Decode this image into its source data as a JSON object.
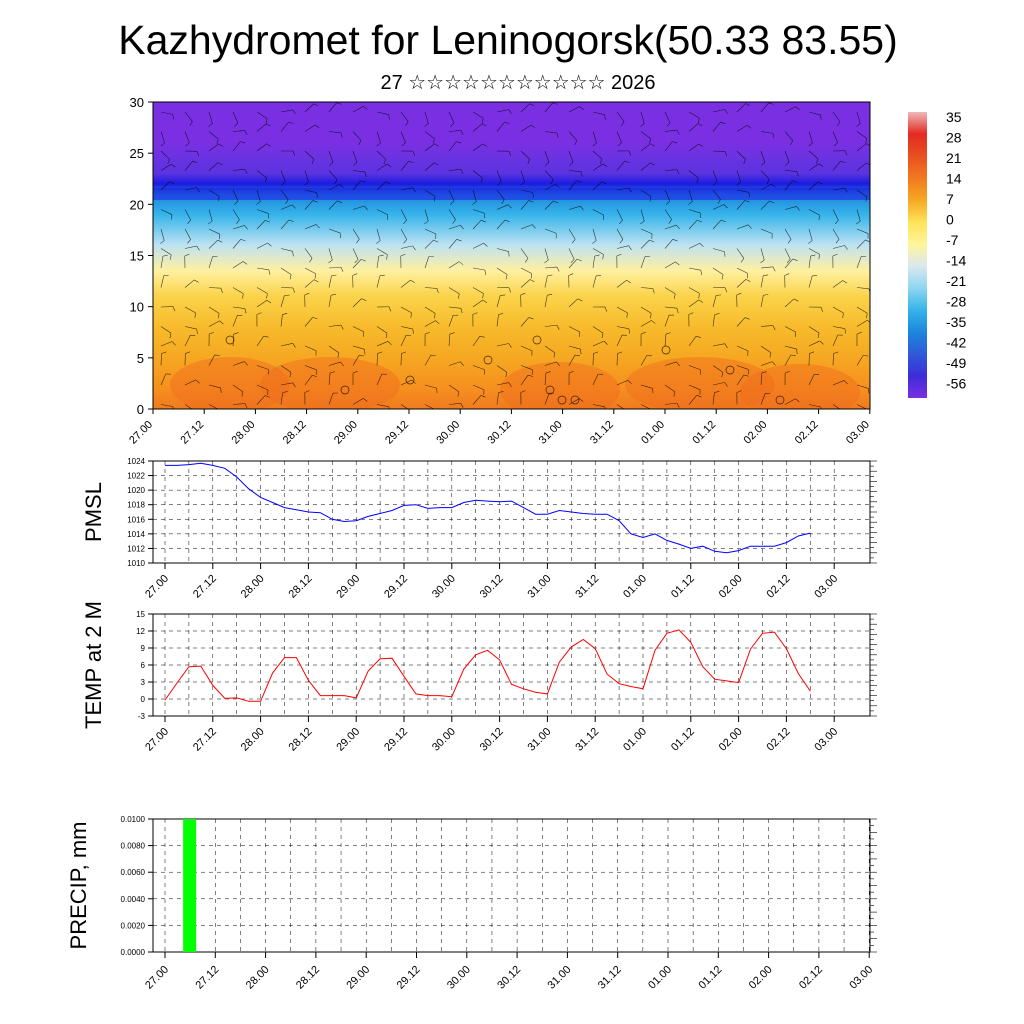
{
  "title": "Kazhydromet for Leninogorsk(50.33 83.55)",
  "subtitle": "27 ☆☆☆☆☆☆☆☆☆☆☆ 2026",
  "colors": {
    "pmsl_line": "#0000ff",
    "temp_line": "#ff0000",
    "precip_bar": "#00ff00",
    "frame": "#000000",
    "grid": "#000000"
  },
  "chart_data": [
    {
      "type": "heatmap",
      "title": "",
      "xlabel": "",
      "ylabel": "",
      "x_ticks": [
        "27.00",
        "27.12",
        "28.00",
        "28.12",
        "29.00",
        "29.12",
        "30.00",
        "30.12",
        "31.00",
        "31.12",
        "01.00",
        "01.12",
        "02.00",
        "02.12",
        "03.00"
      ],
      "xlim": [
        0,
        14
      ],
      "ylim": [
        0,
        30
      ],
      "y_ticks": [
        0,
        5,
        10,
        15,
        20,
        25,
        30
      ],
      "overlay": "wind barbs",
      "colorbar_labels": [
        "35",
        "28",
        "21",
        "14",
        "7",
        "0",
        "-7",
        "-14",
        "-21",
        "-28",
        "-35",
        "-42",
        "-49",
        "-56"
      ],
      "colorbar_colors": [
        "#f0b8b8",
        "#e32a22",
        "#e85020",
        "#f07a1f",
        "#f6a822",
        "#fde35a",
        "#fff59a",
        "#dbe8f0",
        "#8fd6f0",
        "#36b4ea",
        "#1d86dc",
        "#2f5ad8",
        "#3d2cd8",
        "#7a30e2"
      ],
      "profile_levels": [
        0,
        2,
        5,
        8,
        11,
        13.5,
        16,
        19,
        21,
        22,
        23,
        26,
        30
      ],
      "profile_colors": [
        "#f07a1f",
        "#f6901f",
        "#f6a822",
        "#f7bb2c",
        "#fbd34a",
        "#fff0a0",
        "#bfe2f2",
        "#36b4ea",
        "#1d86dc",
        "#1c1ae0",
        "#5a34e0",
        "#7a30e2",
        "#7a30e2"
      ]
    },
    {
      "type": "line",
      "ylabel": "PMSL",
      "x_ticks": [
        "27.00",
        "27.12",
        "28.00",
        "28.12",
        "29.00",
        "29.12",
        "30.00",
        "30.12",
        "31.00",
        "31.12",
        "01.00",
        "01.12",
        "02.00",
        "02.12",
        "03.00"
      ],
      "xlim": [
        0,
        14
      ],
      "ylim": [
        1010,
        1024
      ],
      "y_ticks": [
        1010,
        1012,
        1014,
        1016,
        1018,
        1020,
        1022,
        1024
      ],
      "grid": true,
      "series": [
        {
          "x": [
            0,
            0.25,
            0.5,
            0.75,
            1,
            1.25,
            1.5,
            1.75,
            2,
            2.25,
            2.5,
            2.75,
            3,
            3.25,
            3.5,
            3.75,
            4,
            4.25,
            4.5,
            4.75,
            5,
            5.25,
            5.5,
            5.75,
            6,
            6.25,
            6.5,
            6.75,
            7,
            7.25,
            7.5,
            7.75,
            8,
            8.25,
            8.5,
            8.75,
            9,
            9.25,
            9.5,
            9.75,
            10,
            10.25,
            10.5,
            10.75,
            11,
            11.25,
            11.5,
            11.75,
            12,
            12.25,
            12.5,
            12.75,
            13,
            13.25,
            13.5
          ],
          "values": [
            1023.4,
            1023.4,
            1023.5,
            1023.7,
            1023.4,
            1023.0,
            1021.8,
            1020.2,
            1019.0,
            1018.3,
            1017.6,
            1017.3,
            1017.0,
            1016.9,
            1016.0,
            1015.7,
            1015.8,
            1016.4,
            1016.8,
            1017.2,
            1017.9,
            1018.0,
            1017.5,
            1017.6,
            1017.6,
            1018.3,
            1018.6,
            1018.5,
            1018.4,
            1018.5,
            1017.6,
            1016.7,
            1016.7,
            1017.2,
            1017.0,
            1016.8,
            1016.7,
            1016.7,
            1015.8,
            1014.0,
            1013.5,
            1014.0,
            1013.1,
            1012.6,
            1012.0,
            1012.3,
            1011.6,
            1011.4,
            1011.7,
            1012.3,
            1012.3,
            1012.3,
            1012.8,
            1013.7,
            1014.1
          ]
        }
      ]
    },
    {
      "type": "line",
      "ylabel": "TEMP at 2 M",
      "x_ticks": [
        "27.00",
        "27.12",
        "28.00",
        "28.12",
        "29.00",
        "29.12",
        "30.00",
        "30.12",
        "31.00",
        "31.12",
        "01.00",
        "01.12",
        "02.00",
        "02.12",
        "03.00"
      ],
      "xlim": [
        0,
        14
      ],
      "ylim": [
        -3,
        15
      ],
      "y_ticks": [
        -3,
        0,
        3,
        6,
        9,
        12,
        15
      ],
      "grid": true,
      "series": [
        {
          "x": [
            0,
            0.25,
            0.5,
            0.75,
            1,
            1.25,
            1.5,
            1.75,
            2,
            2.25,
            2.5,
            2.75,
            3,
            3.25,
            3.5,
            3.75,
            4,
            4.25,
            4.5,
            4.75,
            5,
            5.25,
            5.5,
            5.75,
            6,
            6.25,
            6.5,
            6.75,
            7,
            7.25,
            7.5,
            7.75,
            8,
            8.25,
            8.5,
            8.75,
            9,
            9.25,
            9.5,
            9.75,
            10,
            10.25,
            10.5,
            10.75,
            11,
            11.25,
            11.5,
            11.75,
            12,
            12.25,
            12.5,
            12.75,
            13,
            13.25,
            13.5
          ],
          "values": [
            -0.2,
            2.8,
            5.7,
            5.8,
            2.4,
            0.1,
            0.2,
            -0.4,
            -0.4,
            4.6,
            7.3,
            7.3,
            3.3,
            0.6,
            0.6,
            0.6,
            0.2,
            4.9,
            7.1,
            7.2,
            4.0,
            0.9,
            0.6,
            0.6,
            0.4,
            5.3,
            7.8,
            8.6,
            6.9,
            2.6,
            1.8,
            1.2,
            0.9,
            6.5,
            9.2,
            10.5,
            8.9,
            4.4,
            2.7,
            2.2,
            1.8,
            8.6,
            11.6,
            12.2,
            10.0,
            5.7,
            3.5,
            3.2,
            2.9,
            8.8,
            11.6,
            11.8,
            8.9,
            4.5,
            1.4
          ]
        }
      ]
    },
    {
      "type": "bar",
      "ylabel": "PRECIP, mm",
      "x_ticks": [
        "27.00",
        "27.12",
        "28.00",
        "28.12",
        "29.00",
        "29.12",
        "30.00",
        "30.12",
        "31.00",
        "31.12",
        "01.00",
        "01.12",
        "02.00",
        "02.12",
        "03.00"
      ],
      "xlim": [
        0,
        14
      ],
      "ylim": [
        0,
        0.01
      ],
      "y_ticks": [
        "0.0000",
        "0.0020",
        "0.0040",
        "0.0060",
        "0.0080",
        "0.0100"
      ],
      "grid": true,
      "bars": [
        {
          "x": 0.5,
          "value": 0.01
        }
      ]
    }
  ]
}
